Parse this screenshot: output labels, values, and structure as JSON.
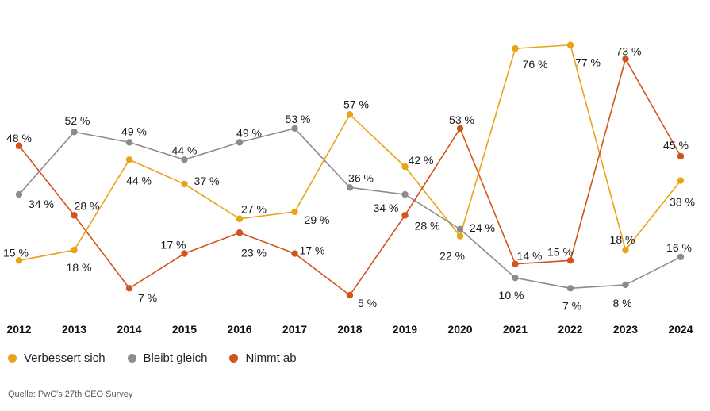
{
  "chart_data": {
    "type": "line",
    "categories": [
      "2012",
      "2013",
      "2014",
      "2015",
      "2016",
      "2017",
      "2018",
      "2019",
      "2020",
      "2021",
      "2022",
      "2023",
      "2024"
    ],
    "series": [
      {
        "name": "Verbessert sich",
        "color": "#E8A317",
        "values": [
          15,
          18,
          44,
          37,
          27,
          29,
          57,
          42,
          22,
          76,
          77,
          18,
          38
        ],
        "labels": [
          "15 %",
          "18 %",
          "44 %",
          "37 %",
          "27 %",
          "29 %",
          "57 %",
          "42 %",
          "22 %",
          "76 %",
          "77 %",
          "18 %",
          "38 %"
        ]
      },
      {
        "name": "Bleibt gleich",
        "color": "#8C8C8C",
        "values": [
          34,
          52,
          49,
          44,
          49,
          53,
          36,
          34,
          24,
          10,
          7,
          8,
          16
        ],
        "labels": [
          "34 %",
          "52 %",
          "49 %",
          "44 %",
          "49 %",
          "53 %",
          "36 %",
          "34 %",
          "24 %",
          "10 %",
          "7 %",
          "8 %",
          "16 %"
        ]
      },
      {
        "name": "Nimmt ab",
        "color": "#D0551B",
        "values": [
          48,
          28,
          7,
          17,
          23,
          17,
          5,
          28,
          53,
          14,
          15,
          73,
          45
        ],
        "labels": [
          "48 %",
          "28 %",
          "7 %",
          "17 %",
          "23 %",
          "17 %",
          "5 %",
          "28 %",
          "53 %",
          "14 %",
          "15 %",
          "73 %",
          "45 %"
        ]
      }
    ],
    "title": "",
    "xlabel": "",
    "ylabel": "",
    "ylim": [
      0,
      80
    ],
    "grid": false,
    "legend_position": "bottom-left"
  },
  "source": "Quelle: PwC's 27th CEO Survey"
}
